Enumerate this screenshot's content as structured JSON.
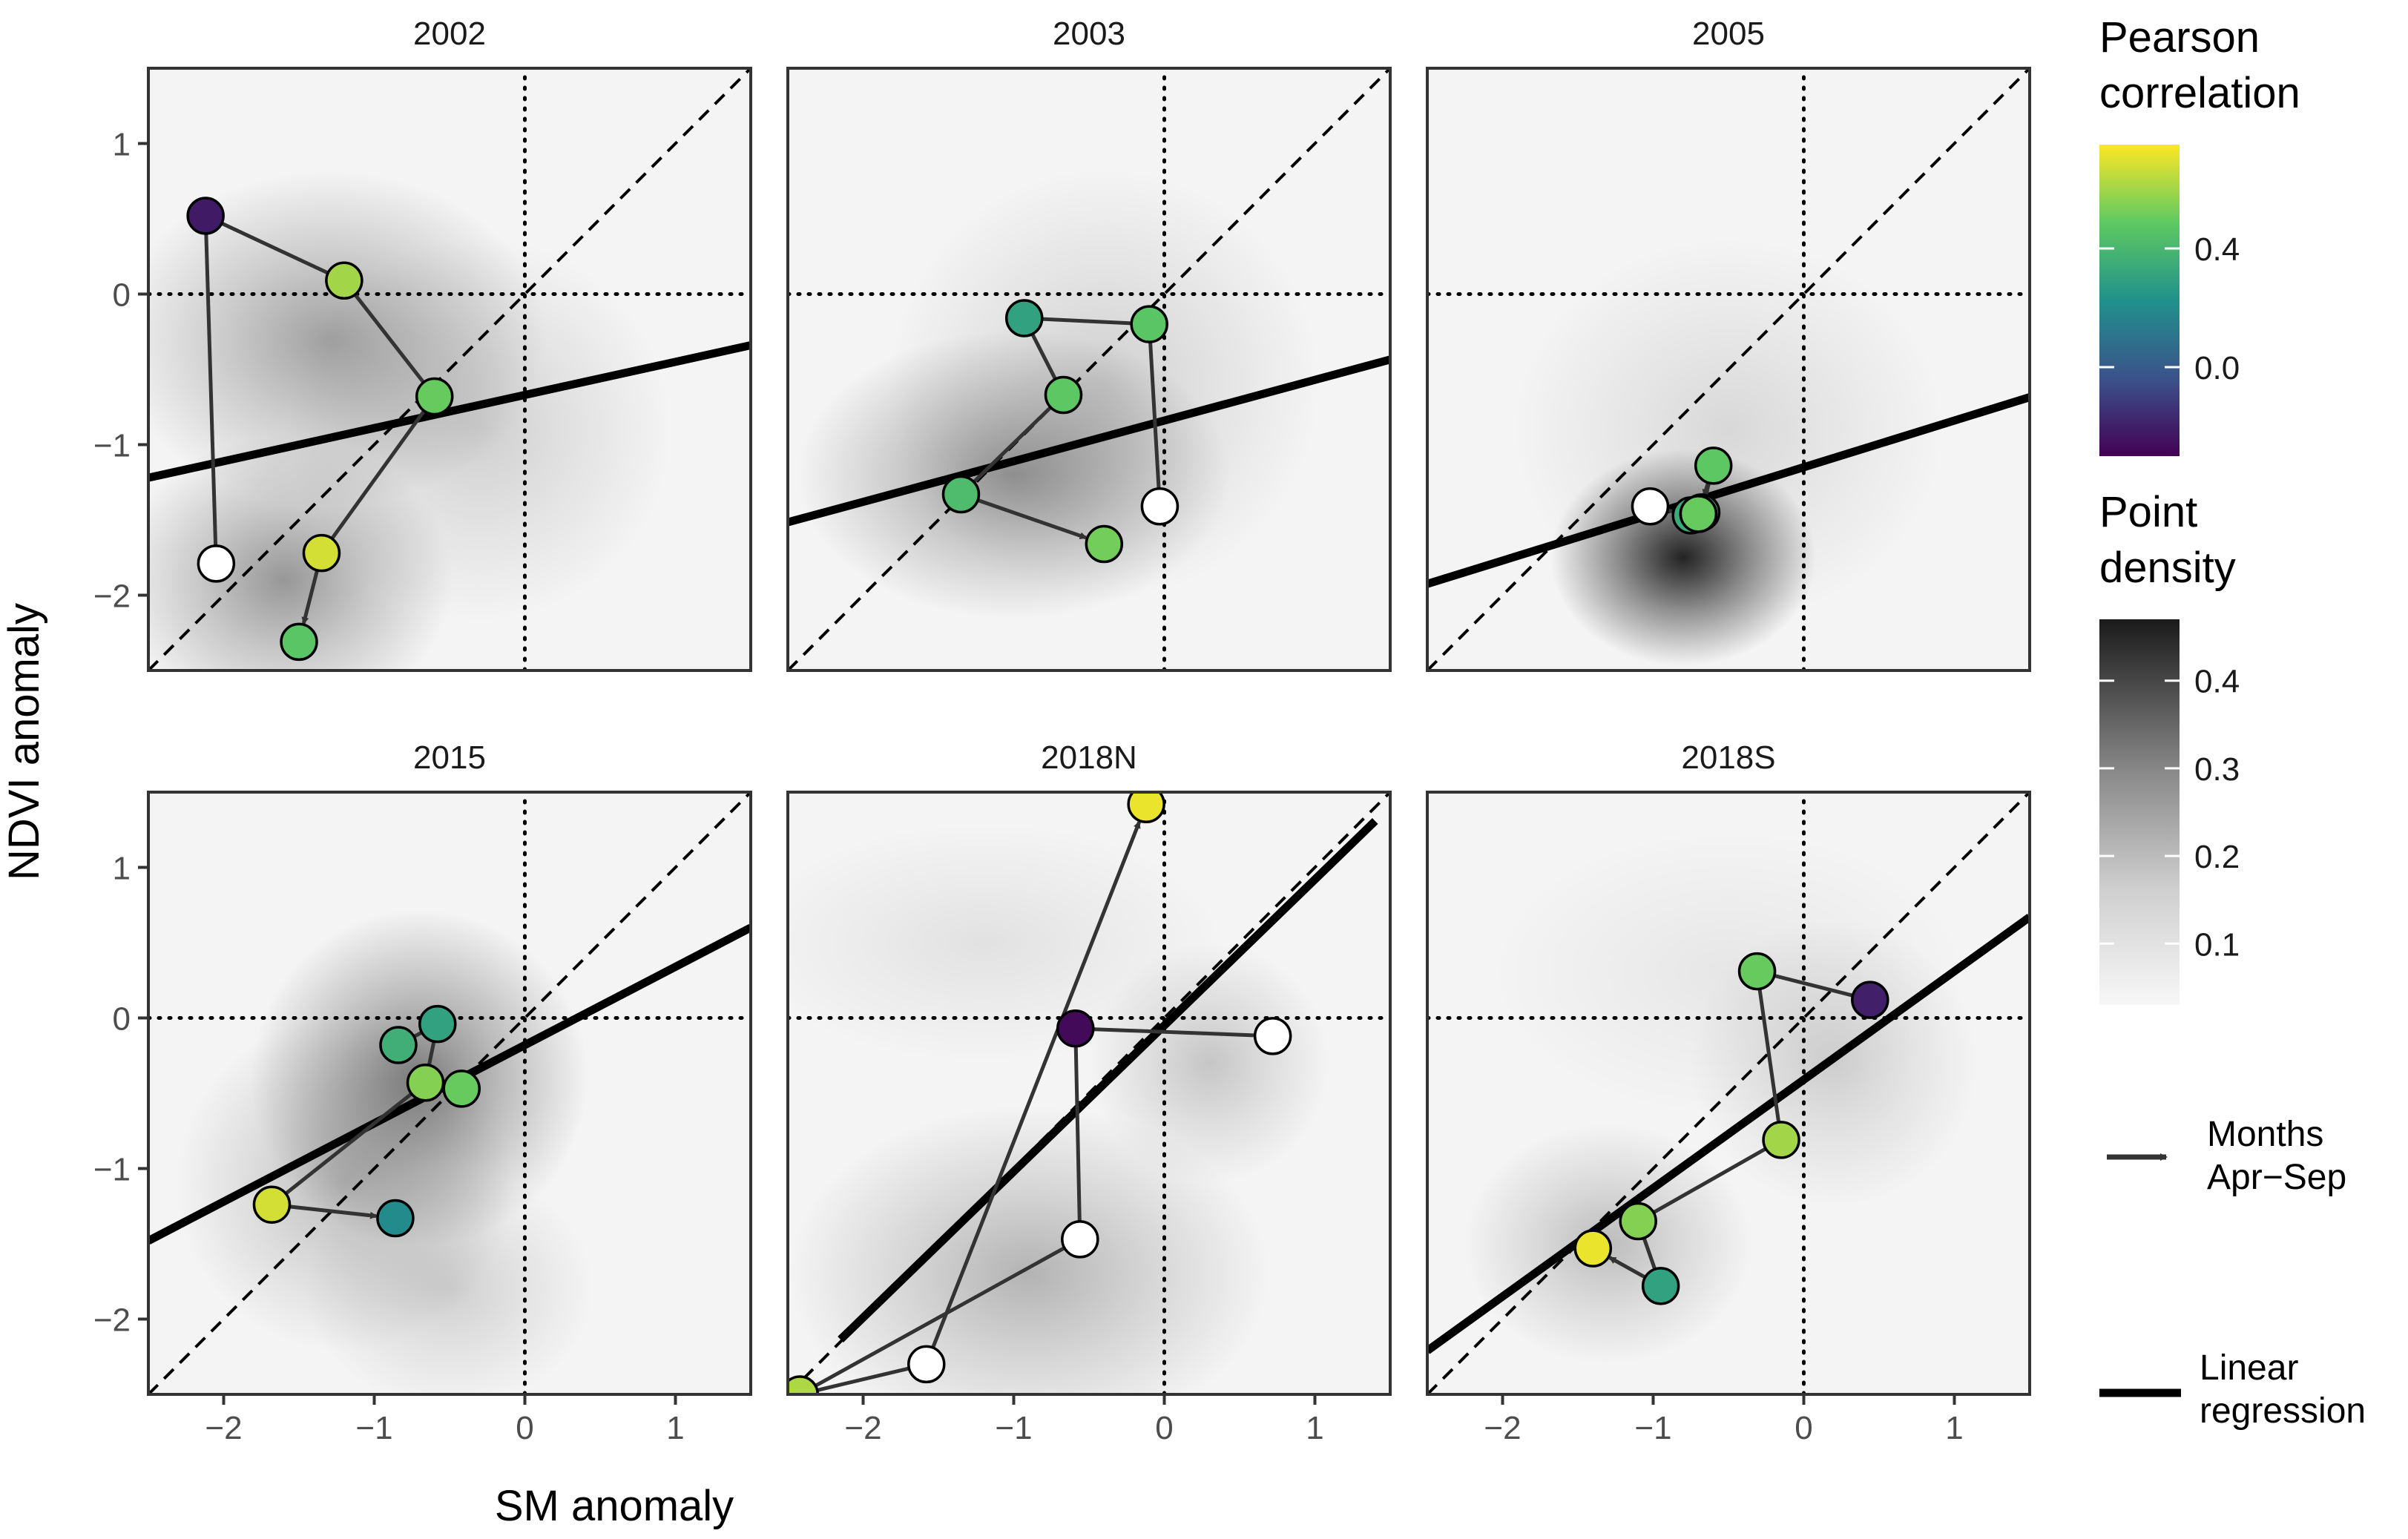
{
  "chart_data": {
    "type": "scatter",
    "xlabel": "SM anomaly",
    "ylabel": "NDVI anomaly",
    "xlim": [
      -2.5,
      1.5
    ],
    "ylim": [
      -2.5,
      1.5
    ],
    "x_ticks": [
      -2,
      -1,
      0,
      1
    ],
    "x_tick_labels": [
      "−2",
      "−1",
      "0",
      "1"
    ],
    "y_ticks": [
      -2,
      -1,
      0,
      1
    ],
    "y_tick_labels": [
      "−2",
      "−1",
      "0",
      "1"
    ],
    "color_scale": {
      "title": "Pearson correlation",
      "min": -0.3,
      "max": 0.75,
      "ticks": [
        0.0,
        0.4
      ],
      "tick_labels": [
        "0.0",
        "0.4"
      ]
    },
    "density_scale": {
      "title": "Point density",
      "min": 0.03,
      "max": 0.47,
      "ticks": [
        0.1,
        0.2,
        0.3,
        0.4
      ],
      "tick_labels": [
        "0.1",
        "0.2",
        "0.3",
        "0.4"
      ]
    },
    "legend": {
      "arrow_label": "Months\nApr−Sep",
      "line_label": "Linear\nregression"
    },
    "colors": {
      "open_circle": "#ffffff",
      "regression_line": "#000000",
      "arrow": "#333333"
    },
    "panels": [
      {
        "title": "2002",
        "regression": {
          "slope": 0.22,
          "intercept": -0.67,
          "x_range": [
            -2.5,
            1.5
          ]
        },
        "density_blobs": [
          {
            "x": -1.3,
            "y": -0.3,
            "sx": 0.9,
            "sy": 0.7,
            "w": 0.18
          },
          {
            "x": -1.6,
            "y": -1.9,
            "sx": 0.7,
            "sy": 0.6,
            "w": 0.2
          },
          {
            "x": -0.3,
            "y": -0.9,
            "sx": 0.8,
            "sy": 0.8,
            "w": 0.08
          }
        ],
        "points": [
          {
            "month": 4,
            "x": -2.05,
            "y": -1.79,
            "r": null
          },
          {
            "month": 5,
            "x": -1.35,
            "y": -1.72,
            "r": 0.68
          },
          {
            "month": 6,
            "x": -0.6,
            "y": -0.68,
            "r": 0.5
          },
          {
            "month": 7,
            "x": -1.2,
            "y": 0.09,
            "r": 0.6
          },
          {
            "month": 8,
            "x": -2.12,
            "y": 0.52,
            "r": -0.22
          },
          {
            "month": 9,
            "x": -1.5,
            "y": -2.31,
            "r": 0.47
          }
        ],
        "path": [
          4,
          8,
          7,
          6,
          5,
          9
        ]
      },
      {
        "title": "2003",
        "regression": {
          "slope": 0.27,
          "intercept": -0.84,
          "x_range": [
            -2.5,
            1.5
          ]
        },
        "density_blobs": [
          {
            "x": -1.0,
            "y": -1.2,
            "sx": 0.9,
            "sy": 0.6,
            "w": 0.2
          },
          {
            "x": -0.4,
            "y": -0.6,
            "sx": 0.9,
            "sy": 0.9,
            "w": 0.08
          }
        ],
        "points": [
          {
            "month": 4,
            "x": -0.03,
            "y": -1.41,
            "r": null
          },
          {
            "month": 5,
            "x": -0.1,
            "y": -0.2,
            "r": 0.47
          },
          {
            "month": 6,
            "x": -0.93,
            "y": -0.16,
            "r": 0.3
          },
          {
            "month": 7,
            "x": -0.67,
            "y": -0.67,
            "r": 0.48
          },
          {
            "month": 8,
            "x": -1.35,
            "y": -1.33,
            "r": 0.42
          },
          {
            "month": 9,
            "x": -0.4,
            "y": -1.66,
            "r": 0.52
          }
        ],
        "path": [
          4,
          5,
          6,
          7,
          8,
          9
        ]
      },
      {
        "title": "2005",
        "regression": {
          "slope": 0.31,
          "intercept": -1.15,
          "x_range": [
            -2.5,
            1.5
          ]
        },
        "density_blobs": [
          {
            "x": -0.8,
            "y": -1.75,
            "sx": 0.55,
            "sy": 0.45,
            "w": 0.45
          },
          {
            "x": -0.5,
            "y": -0.9,
            "sx": 0.9,
            "sy": 0.8,
            "w": 0.06
          }
        ],
        "points": [
          {
            "month": 4,
            "x": -1.02,
            "y": -1.41,
            "r": null
          },
          {
            "month": 5,
            "x": -0.75,
            "y": -1.47,
            "r": 0.34
          },
          {
            "month": 6,
            "x": -0.68,
            "y": -1.45,
            "r": 0.44
          },
          {
            "month": 7,
            "x": -0.6,
            "y": -1.14,
            "r": 0.48
          },
          {
            "month": 8,
            "x": -0.7,
            "y": -1.46,
            "r": 0.3
          },
          {
            "month": 9,
            "x": -0.7,
            "y": -1.46,
            "r": 0.5
          }
        ],
        "path": [
          4,
          5,
          6,
          7,
          8
        ]
      },
      {
        "title": "2015",
        "regression": {
          "slope": 0.52,
          "intercept": -0.18,
          "x_range": [
            -2.5,
            1.5
          ]
        },
        "density_blobs": [
          {
            "x": -0.7,
            "y": -0.4,
            "sx": 0.7,
            "sy": 0.7,
            "w": 0.25
          },
          {
            "x": -1.2,
            "y": -1.1,
            "sx": 0.7,
            "sy": 0.7,
            "w": 0.12
          },
          {
            "x": -0.5,
            "y": -1.8,
            "sx": 0.6,
            "sy": 0.5,
            "w": 0.08
          }
        ],
        "points": [
          {
            "month": 4,
            "x": -0.58,
            "y": -0.04,
            "r": 0.3
          },
          {
            "month": 5,
            "x": -0.84,
            "y": -0.18,
            "r": 0.36
          },
          {
            "month": 6,
            "x": -0.66,
            "y": -0.43,
            "r": 0.55
          },
          {
            "month": 7,
            "x": -0.42,
            "y": -0.47,
            "r": 0.5
          },
          {
            "month": 8,
            "x": -1.68,
            "y": -1.24,
            "r": 0.68
          },
          {
            "month": 9,
            "x": -0.86,
            "y": -1.33,
            "r": 0.2
          }
        ],
        "path": [
          5,
          4,
          6,
          8,
          9
        ]
      },
      {
        "title": "2018N",
        "regression": {
          "slope": 0.97,
          "intercept": -0.05,
          "x_range": [
            -2.15,
            1.4
          ]
        },
        "density_blobs": [
          {
            "x": -0.9,
            "y": -1.7,
            "sx": 1.0,
            "sy": 0.7,
            "w": 0.14
          },
          {
            "x": 0.3,
            "y": -0.3,
            "sx": 0.5,
            "sy": 0.5,
            "w": 0.1
          },
          {
            "x": -1.2,
            "y": 0.5,
            "sx": 1.0,
            "sy": 0.5,
            "w": 0.04
          }
        ],
        "points": [
          {
            "month": 4,
            "x": 0.72,
            "y": -0.12,
            "r": null
          },
          {
            "month": 5,
            "x": -0.59,
            "y": -0.07,
            "r": -0.27
          },
          {
            "month": 6,
            "x": -0.56,
            "y": -1.47,
            "r": null
          },
          {
            "month": 7,
            "x": -2.42,
            "y": -2.5,
            "r": 0.62
          },
          {
            "month": 8,
            "x": -1.58,
            "y": -2.3,
            "r": null
          },
          {
            "month": 9,
            "x": -0.12,
            "y": 1.42,
            "r": 0.72
          }
        ],
        "path": [
          4,
          5,
          6,
          7,
          8,
          9
        ]
      },
      {
        "title": "2018S",
        "regression": {
          "slope": 0.72,
          "intercept": -0.41,
          "x_range": [
            -2.5,
            1.5
          ]
        },
        "density_blobs": [
          {
            "x": -1.3,
            "y": -1.5,
            "sx": 0.6,
            "sy": 0.5,
            "w": 0.12
          },
          {
            "x": 0.2,
            "y": -0.3,
            "sx": 0.6,
            "sy": 0.6,
            "w": 0.08
          },
          {
            "x": -0.5,
            "y": 0.3,
            "sx": 1.0,
            "sy": 0.6,
            "w": 0.03
          }
        ],
        "points": [
          {
            "month": 4,
            "x": 0.44,
            "y": 0.12,
            "r": -0.2
          },
          {
            "month": 5,
            "x": -0.31,
            "y": 0.31,
            "r": 0.5
          },
          {
            "month": 6,
            "x": -0.15,
            "y": -0.81,
            "r": 0.6
          },
          {
            "month": 7,
            "x": -1.1,
            "y": -1.35,
            "r": 0.55
          },
          {
            "month": 8,
            "x": -1.4,
            "y": -1.53,
            "r": 0.72
          },
          {
            "month": 9,
            "x": -0.95,
            "y": -1.78,
            "r": 0.3
          }
        ],
        "path": [
          4,
          5,
          6,
          7,
          9,
          8
        ]
      }
    ]
  }
}
